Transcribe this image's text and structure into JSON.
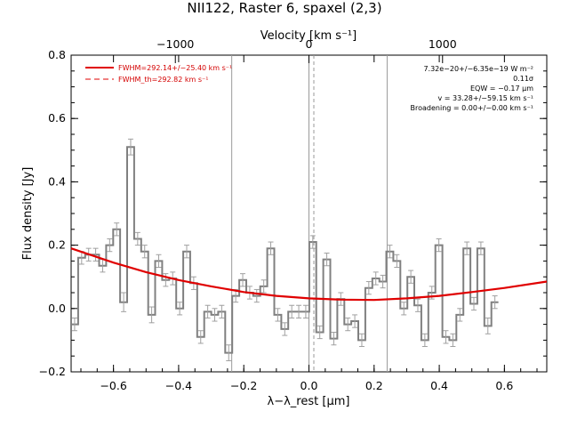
{
  "chart_data": {
    "type": "line",
    "title": "NII122, Raster 6, spaxel (2,3)",
    "xlabel": "λ−λ_rest [μm]",
    "ylabel": "Flux density [Jy]",
    "top_xlabel": "Velocity [km s⁻¹]",
    "xlim": [
      -0.73,
      0.73
    ],
    "ylim": [
      -0.2,
      0.8
    ],
    "x_ticks": [
      -0.6,
      -0.4,
      -0.2,
      0.0,
      0.2,
      0.4,
      0.6
    ],
    "x_tick_labels": [
      "−0.6",
      "−0.4",
      "−0.2",
      "0.0",
      "0.2",
      "0.4",
      "0.6"
    ],
    "y_ticks": [
      -0.2,
      0.0,
      0.2,
      0.4,
      0.6,
      0.8
    ],
    "y_tick_labels": [
      "−0.2",
      "0.0",
      "0.2",
      "0.4",
      "0.6",
      "0.8"
    ],
    "top_ticks": [
      -1000,
      0,
      1000
    ],
    "top_tick_labels": [
      "−1000",
      "0",
      "1000"
    ],
    "km_per_um": 2438.5,
    "vlines_solid": [
      -0.237,
      0.0,
      0.24
    ],
    "vline_dashed": 0.015,
    "bin_width": 0.0215,
    "bin_start": -0.73,
    "spectrum": {
      "name": "spectrum",
      "color": "#808080",
      "values": [
        -0.05,
        0.16,
        0.17,
        0.17,
        0.135,
        0.2,
        0.25,
        0.02,
        0.51,
        0.22,
        0.18,
        -0.02,
        0.15,
        0.09,
        0.095,
        0.0,
        0.18,
        0.08,
        -0.09,
        -0.01,
        -0.02,
        -0.01,
        -0.14,
        0.04,
        0.09,
        0.05,
        0.04,
        0.07,
        0.19,
        -0.02,
        -0.065,
        -0.01,
        -0.01,
        -0.01,
        0.21,
        -0.075,
        0.155,
        -0.095,
        0.03,
        -0.05,
        -0.04,
        -0.1,
        0.065,
        0.095,
        0.085,
        0.18,
        0.15,
        0.0,
        0.1,
        0.01,
        -0.1,
        0.05,
        0.2,
        -0.09,
        -0.1,
        -0.02,
        0.19,
        0.015,
        0.19,
        -0.055,
        0.02
      ],
      "errors": [
        0.02,
        0.02,
        0.02,
        0.02,
        0.02,
        0.02,
        0.02,
        0.03,
        0.025,
        0.02,
        0.02,
        0.025,
        0.02,
        0.02,
        0.02,
        0.02,
        0.02,
        0.02,
        0.02,
        0.02,
        0.02,
        0.02,
        0.025,
        0.02,
        0.02,
        0.02,
        0.02,
        0.02,
        0.02,
        0.02,
        0.02,
        0.02,
        0.02,
        0.02,
        0.02,
        0.02,
        0.02,
        0.02,
        0.02,
        0.02,
        0.02,
        0.02,
        0.02,
        0.02,
        0.02,
        0.02,
        0.02,
        0.02,
        0.02,
        0.02,
        0.02,
        0.02,
        0.02,
        0.02,
        0.02,
        0.02,
        0.02,
        0.02,
        0.02,
        0.025,
        0.02
      ]
    },
    "fit": {
      "name": "FWHM=292.14+/−25.40 km s⁻¹",
      "color": "#e00000",
      "x": [
        -0.73,
        -0.6,
        -0.5,
        -0.4,
        -0.3,
        -0.2,
        -0.1,
        0.0,
        0.1,
        0.2,
        0.3,
        0.4,
        0.5,
        0.6,
        0.73
      ],
      "y": [
        0.19,
        0.145,
        0.115,
        0.09,
        0.07,
        0.052,
        0.04,
        0.032,
        0.028,
        0.027,
        0.032,
        0.04,
        0.052,
        0.065,
        0.085
      ]
    },
    "legend": {
      "placement": "top-left",
      "entries": [
        {
          "label": "FWHM=292.14+/−25.40 km s⁻¹",
          "style": "solid",
          "color": "#e00000"
        },
        {
          "label": "FWHM_th=292.82 km s⁻¹",
          "style": "dashed",
          "color": "#e00000"
        }
      ]
    },
    "annotations": [
      "7.32e−20+/−6.35e−19 W m⁻²",
      "0.11σ",
      "EQW = −0.17 μm",
      "v = 33.28+/−59.15 km s⁻¹",
      "Broadening = 0.00+/−0.00 km s⁻¹"
    ]
  }
}
